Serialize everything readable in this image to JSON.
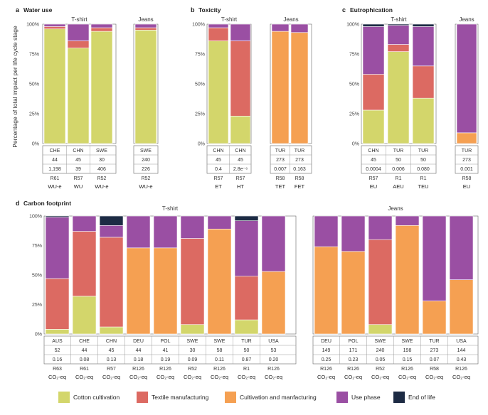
{
  "colors": {
    "cotton": "#d3d66b",
    "textile": "#dc6a62",
    "cultivation": "#f5a052",
    "use": "#9a4fa3",
    "eol": "#1d2b44"
  },
  "y_axis_label": "Percentage of total impact per life cycle stage",
  "y_ticks": [
    "0%",
    "25%",
    "50%",
    "75%",
    "100%"
  ],
  "legend": [
    {
      "key": "cotton",
      "label": "Cotton cultivation"
    },
    {
      "key": "textile",
      "label": "Textile manufacturing"
    },
    {
      "key": "cultivation",
      "label": "Cultivation and manfacturing"
    },
    {
      "key": "use",
      "label": "Use phase"
    },
    {
      "key": "eol",
      "label": "End of life"
    }
  ],
  "chart_data": [
    {
      "panel": "a",
      "title": "Water use",
      "type": "bar",
      "stacked": true,
      "ylim": [
        0,
        100
      ],
      "groups": [
        {
          "name": "T-shirt",
          "bars": [
            {
              "country": "CHE",
              "n": "44",
              "value": "1,198",
              "ref": "R61",
              "label": "WU-e",
              "stack": [
                {
                  "s": "cotton",
                  "v": 96
                },
                {
                  "s": "textile",
                  "v": 2
                },
                {
                  "s": "use",
                  "v": 2
                }
              ]
            },
            {
              "country": "CHN",
              "n": "45",
              "value": "39",
              "ref": "R57",
              "label": "WU",
              "stack": [
                {
                  "s": "cotton",
                  "v": 80
                },
                {
                  "s": "textile",
                  "v": 6
                },
                {
                  "s": "use",
                  "v": 14
                }
              ]
            },
            {
              "country": "SWE",
              "n": "30",
              "value": "406",
              "ref": "R52",
              "label": "WU-e",
              "stack": [
                {
                  "s": "cotton",
                  "v": 94
                },
                {
                  "s": "textile",
                  "v": 3
                },
                {
                  "s": "use",
                  "v": 3
                }
              ]
            }
          ]
        },
        {
          "name": "Jeans",
          "bars": [
            {
              "country": "SWE",
              "n": "240",
              "value": "226",
              "ref": "R52",
              "label": "WU-e",
              "stack": [
                {
                  "s": "cotton",
                  "v": 95
                },
                {
                  "s": "textile",
                  "v": 2
                },
                {
                  "s": "use",
                  "v": 3
                }
              ]
            }
          ]
        }
      ]
    },
    {
      "panel": "b",
      "title": "Toxicity",
      "type": "bar",
      "stacked": true,
      "ylim": [
        0,
        100
      ],
      "groups": [
        {
          "name": "T-shirt",
          "bars": [
            {
              "country": "CHN",
              "n": "45",
              "value": "0.4",
              "ref": "R57",
              "label": "ET",
              "stack": [
                {
                  "s": "cotton",
                  "v": 86
                },
                {
                  "s": "textile",
                  "v": 11
                },
                {
                  "s": "use",
                  "v": 3
                }
              ]
            },
            {
              "country": "CHN",
              "n": "45",
              "value": "2.8e⁻⁶",
              "ref": "R57",
              "label": "HT",
              "stack": [
                {
                  "s": "cotton",
                  "v": 23
                },
                {
                  "s": "textile",
                  "v": 63
                },
                {
                  "s": "use",
                  "v": 14
                }
              ]
            }
          ]
        },
        {
          "name": "Jeans",
          "bars": [
            {
              "country": "TUR",
              "n": "273",
              "value": "0.007",
              "ref": "R58",
              "label": "TET",
              "stack": [
                {
                  "s": "cultivation",
                  "v": 94
                },
                {
                  "s": "use",
                  "v": 6
                }
              ]
            },
            {
              "country": "TUR",
              "n": "273",
              "value": "0.163",
              "ref": "R58",
              "label": "FET",
              "stack": [
                {
                  "s": "cultivation",
                  "v": 93
                },
                {
                  "s": "use",
                  "v": 7
                }
              ]
            }
          ]
        }
      ]
    },
    {
      "panel": "c",
      "title": "Eutrophication",
      "type": "bar",
      "stacked": true,
      "ylim": [
        0,
        100
      ],
      "groups": [
        {
          "name": "T-shirt",
          "bars": [
            {
              "country": "CHN",
              "n": "45",
              "value": "0.0004",
              "ref": "R57",
              "label": "EU",
              "stack": [
                {
                  "s": "cotton",
                  "v": 28
                },
                {
                  "s": "textile",
                  "v": 30
                },
                {
                  "s": "use",
                  "v": 40
                },
                {
                  "s": "eol",
                  "v": 2
                }
              ]
            },
            {
              "country": "TUR",
              "n": "50",
              "value": "0.006",
              "ref": "R1",
              "label": "AEU",
              "stack": [
                {
                  "s": "cotton",
                  "v": 77
                },
                {
                  "s": "textile",
                  "v": 6
                },
                {
                  "s": "use",
                  "v": 16
                },
                {
                  "s": "eol",
                  "v": 1
                }
              ]
            },
            {
              "country": "TUR",
              "n": "50",
              "value": "0.080",
              "ref": "R1",
              "label": "TEU",
              "stack": [
                {
                  "s": "cotton",
                  "v": 38
                },
                {
                  "s": "textile",
                  "v": 27
                },
                {
                  "s": "use",
                  "v": 33
                },
                {
                  "s": "eol",
                  "v": 2
                }
              ]
            }
          ]
        },
        {
          "name": "Jeans",
          "bars": [
            {
              "country": "TUR",
              "n": "273",
              "value": "0.001",
              "ref": "R58",
              "label": "EU",
              "stack": [
                {
                  "s": "cultivation",
                  "v": 9
                },
                {
                  "s": "use",
                  "v": 91
                }
              ]
            }
          ]
        }
      ]
    },
    {
      "panel": "d",
      "title": "Carbon footprint",
      "type": "bar",
      "stacked": true,
      "ylim": [
        0,
        100
      ],
      "groups": [
        {
          "name": "T-shirt",
          "bars": [
            {
              "country": "AUS",
              "n": "52",
              "value": "0.16",
              "ref": "R63",
              "label": "CO₂-eq",
              "stack": [
                {
                  "s": "cotton",
                  "v": 4
                },
                {
                  "s": "textile",
                  "v": 43
                },
                {
                  "s": "use",
                  "v": 52
                },
                {
                  "s": "eol",
                  "v": 1
                }
              ]
            },
            {
              "country": "CHE",
              "n": "44",
              "value": "0.08",
              "ref": "R61",
              "label": "CO₂-eq",
              "stack": [
                {
                  "s": "cotton",
                  "v": 32
                },
                {
                  "s": "textile",
                  "v": 55
                },
                {
                  "s": "use",
                  "v": 13
                }
              ]
            },
            {
              "country": "CHN",
              "n": "45",
              "value": "0.13",
              "ref": "R57",
              "label": "CO₂-eq",
              "stack": [
                {
                  "s": "cotton",
                  "v": 6
                },
                {
                  "s": "textile",
                  "v": 76
                },
                {
                  "s": "use",
                  "v": 10
                },
                {
                  "s": "eol",
                  "v": 8
                }
              ]
            },
            {
              "country": "DEU",
              "n": "44",
              "value": "0.18",
              "ref": "R126",
              "label": "CO₂-eq",
              "stack": [
                {
                  "s": "cultivation",
                  "v": 73
                },
                {
                  "s": "use",
                  "v": 27
                }
              ]
            },
            {
              "country": "POL",
              "n": "41",
              "value": "0.19",
              "ref": "R126",
              "label": "CO₂-eq",
              "stack": [
                {
                  "s": "cultivation",
                  "v": 73
                },
                {
                  "s": "use",
                  "v": 27
                }
              ]
            },
            {
              "country": "SWE",
              "n": "30",
              "value": "0.09",
              "ref": "R52",
              "label": "CO₂-eq",
              "stack": [
                {
                  "s": "cotton",
                  "v": 8
                },
                {
                  "s": "textile",
                  "v": 73
                },
                {
                  "s": "use",
                  "v": 19
                }
              ]
            },
            {
              "country": "SWE",
              "n": "58",
              "value": "0.11",
              "ref": "R126",
              "label": "CO₂-eq",
              "stack": [
                {
                  "s": "cultivation",
                  "v": 89
                },
                {
                  "s": "use",
                  "v": 11
                }
              ]
            },
            {
              "country": "TUR",
              "n": "50",
              "value": "0.87",
              "ref": "R1",
              "label": "CO₂-eq",
              "stack": [
                {
                  "s": "cotton",
                  "v": 12
                },
                {
                  "s": "textile",
                  "v": 37
                },
                {
                  "s": "use",
                  "v": 47
                },
                {
                  "s": "eol",
                  "v": 4
                }
              ]
            },
            {
              "country": "USA",
              "n": "53",
              "value": "0.20",
              "ref": "R126",
              "label": "CO₂-eq",
              "stack": [
                {
                  "s": "cultivation",
                  "v": 53
                },
                {
                  "s": "use",
                  "v": 47
                }
              ]
            }
          ]
        },
        {
          "name": "Jeans",
          "bars": [
            {
              "country": "DEU",
              "n": "149",
              "value": "0.25",
              "ref": "R126",
              "label": "CO₂-eq",
              "stack": [
                {
                  "s": "cultivation",
                  "v": 74
                },
                {
                  "s": "use",
                  "v": 26
                }
              ]
            },
            {
              "country": "POL",
              "n": "171",
              "value": "0.23",
              "ref": "R126",
              "label": "CO₂-eq",
              "stack": [
                {
                  "s": "cultivation",
                  "v": 70
                },
                {
                  "s": "use",
                  "v": 30
                }
              ]
            },
            {
              "country": "SWE",
              "n": "240",
              "value": "0.05",
              "ref": "R52",
              "label": "CO₂-eq",
              "stack": [
                {
                  "s": "cotton",
                  "v": 8
                },
                {
                  "s": "textile",
                  "v": 72
                },
                {
                  "s": "use",
                  "v": 20
                }
              ]
            },
            {
              "country": "SWE",
              "n": "198",
              "value": "0.15",
              "ref": "R126",
              "label": "CO₂-eq",
              "stack": [
                {
                  "s": "cultivation",
                  "v": 92
                },
                {
                  "s": "use",
                  "v": 8
                }
              ]
            },
            {
              "country": "TUR",
              "n": "273",
              "value": "0.07",
              "ref": "R58",
              "label": "CO₂-eq",
              "stack": [
                {
                  "s": "cultivation",
                  "v": 28
                },
                {
                  "s": "use",
                  "v": 72
                }
              ]
            },
            {
              "country": "USA",
              "n": "144",
              "value": "0.43",
              "ref": "R126",
              "label": "CO₂-eq",
              "stack": [
                {
                  "s": "cultivation",
                  "v": 46
                },
                {
                  "s": "use",
                  "v": 54
                }
              ]
            }
          ]
        }
      ]
    }
  ]
}
